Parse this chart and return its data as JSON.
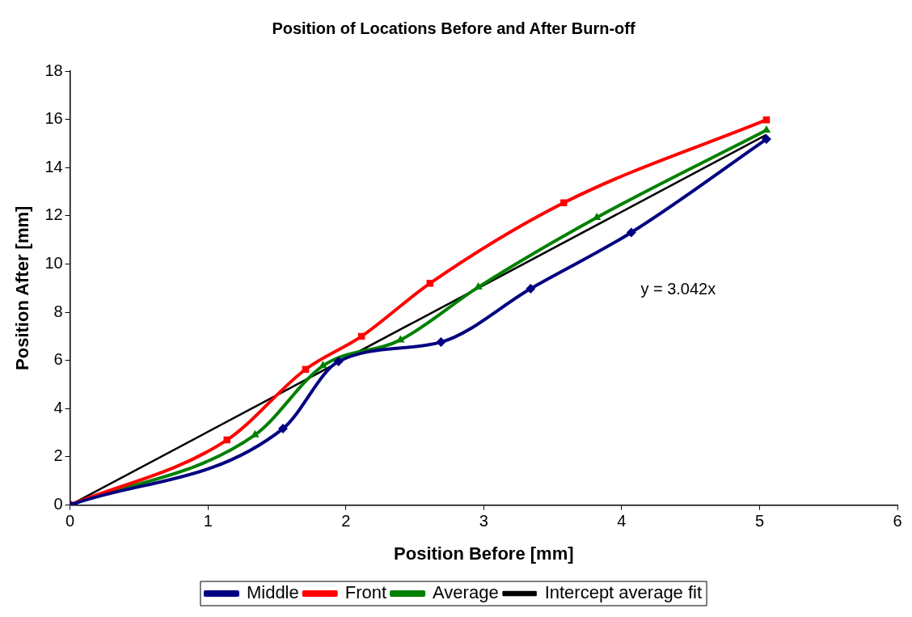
{
  "chart_data": {
    "type": "line",
    "title": "Position of Locations Before and After Burn-off",
    "xlabel": "Position Before [mm]",
    "ylabel": "Position After [mm]",
    "xlim": [
      0,
      6
    ],
    "xticks": [
      0,
      1,
      2,
      3,
      4,
      5,
      6
    ],
    "ylim": [
      0,
      18
    ],
    "yticks": [
      0,
      2,
      4,
      6,
      8,
      10,
      12,
      14,
      16,
      18
    ],
    "grid": false,
    "legend": "bottom",
    "series": [
      {
        "name": "Middle",
        "color": "#000080",
        "marker": "diamond",
        "x": [
          0,
          1.544,
          1.947,
          2.69,
          3.34,
          4.07,
          5.05
        ],
        "values": [
          0,
          3.17,
          5.96,
          6.76,
          8.98,
          11.31,
          15.18
        ]
      },
      {
        "name": "Front",
        "color": "#ff0000",
        "marker": "square",
        "x": [
          0,
          1.138,
          1.708,
          2.114,
          2.61,
          3.58,
          5.05
        ],
        "values": [
          0,
          2.7,
          5.63,
          7.0,
          9.2,
          12.54,
          15.98
        ]
      },
      {
        "name": "Average",
        "color": "#008000",
        "marker": "triangle",
        "x": [
          0,
          1.341,
          1.834,
          2.396,
          2.96,
          3.82,
          5.05
        ],
        "values": [
          0,
          2.91,
          5.78,
          6.85,
          9.04,
          11.93,
          15.55
        ]
      },
      {
        "name": "Intercept average fit",
        "color": "#000000",
        "marker": "none",
        "x": [
          0,
          5.05
        ],
        "values": [
          0,
          15.36
        ]
      }
    ],
    "annotations": [
      "y = 3.042x"
    ]
  }
}
